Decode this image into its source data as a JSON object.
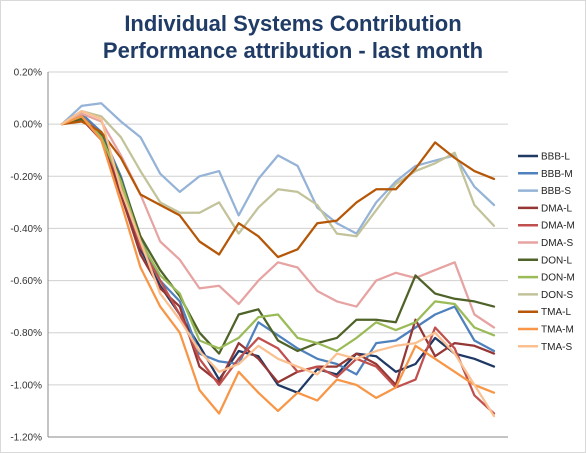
{
  "chart_data": {
    "type": "line",
    "title": "Individual Systems Contribution",
    "subtitle": "Performance attribution - last month",
    "xlabel": "",
    "ylabel": "",
    "ylim": [
      -1.2,
      0.2
    ],
    "yticks": [
      0.2,
      0.0,
      -0.2,
      -0.4,
      -0.6,
      -0.8,
      -1.0,
      -1.2
    ],
    "ytick_labels": [
      "0.20%",
      "0.00%",
      "-0.20%",
      "-0.40%",
      "-0.60%",
      "-0.80%",
      "-1.00%",
      "-1.20%"
    ],
    "grid": "horizontal",
    "legend_position": "right",
    "series": [
      {
        "name": "BBB-L",
        "color": "#1f3864",
        "values": [
          0,
          0.02,
          -0.05,
          -0.25,
          -0.48,
          -0.62,
          -0.73,
          -0.85,
          -0.98,
          -0.87,
          -0.89,
          -1.0,
          -1.03,
          -0.94,
          -0.96,
          -0.88,
          -0.89,
          -0.95,
          -0.92,
          -0.82,
          -0.88,
          -0.9,
          -0.93
        ]
      },
      {
        "name": "BBB-M",
        "color": "#4f81bd",
        "values": [
          0,
          0.04,
          -0.03,
          -0.2,
          -0.44,
          -0.6,
          -0.68,
          -0.88,
          -0.91,
          -0.92,
          -0.76,
          -0.81,
          -0.86,
          -0.9,
          -0.92,
          -0.96,
          -0.84,
          -0.83,
          -0.78,
          -0.73,
          -0.7,
          -0.83,
          -0.87
        ]
      },
      {
        "name": "BBB-S",
        "color": "#95b3d7",
        "values": [
          0,
          0.07,
          0.08,
          0.01,
          -0.05,
          -0.19,
          -0.26,
          -0.2,
          -0.18,
          -0.35,
          -0.21,
          -0.12,
          -0.16,
          -0.32,
          -0.38,
          -0.42,
          -0.3,
          -0.22,
          -0.16,
          -0.14,
          -0.12,
          -0.24,
          -0.31
        ]
      },
      {
        "name": "DMA-L",
        "color": "#953735",
        "values": [
          0,
          0.02,
          -0.06,
          -0.27,
          -0.5,
          -0.63,
          -0.7,
          -0.93,
          -0.99,
          -0.84,
          -0.9,
          -0.99,
          -0.95,
          -0.93,
          -0.93,
          -0.88,
          -0.92,
          -1.0,
          -0.75,
          -0.89,
          -0.84,
          -0.85,
          -0.88
        ]
      },
      {
        "name": "DMA-M",
        "color": "#c0504d",
        "values": [
          0,
          0.03,
          -0.04,
          -0.24,
          -0.47,
          -0.6,
          -0.73,
          -0.9,
          -1.0,
          -0.9,
          -0.82,
          -0.86,
          -0.95,
          -0.93,
          -0.97,
          -0.9,
          -0.93,
          -1.01,
          -0.98,
          -0.78,
          -0.86,
          -1.04,
          -1.11
        ]
      },
      {
        "name": "DMA-S",
        "color": "#e6a3a2",
        "values": [
          0,
          0.04,
          0.01,
          -0.12,
          -0.27,
          -0.45,
          -0.52,
          -0.63,
          -0.62,
          -0.69,
          -0.6,
          -0.53,
          -0.55,
          -0.64,
          -0.68,
          -0.7,
          -0.6,
          -0.57,
          -0.59,
          -0.56,
          -0.53,
          -0.73,
          -0.78
        ]
      },
      {
        "name": "DON-L",
        "color": "#4f6228",
        "values": [
          0,
          0.02,
          -0.04,
          -0.21,
          -0.43,
          -0.56,
          -0.66,
          -0.8,
          -0.88,
          -0.73,
          -0.71,
          -0.83,
          -0.87,
          -0.84,
          -0.82,
          -0.75,
          -0.75,
          -0.76,
          -0.58,
          -0.65,
          -0.67,
          -0.68,
          -0.7
        ]
      },
      {
        "name": "DON-M",
        "color": "#9bbb59",
        "values": [
          0,
          0.03,
          -0.05,
          -0.22,
          -0.45,
          -0.58,
          -0.65,
          -0.83,
          -0.86,
          -0.82,
          -0.74,
          -0.73,
          -0.82,
          -0.84,
          -0.87,
          -0.82,
          -0.76,
          -0.79,
          -0.76,
          -0.68,
          -0.69,
          -0.78,
          -0.81
        ]
      },
      {
        "name": "DON-S",
        "color": "#c3c39b",
        "values": [
          0,
          0.05,
          0.03,
          -0.05,
          -0.18,
          -0.3,
          -0.34,
          -0.34,
          -0.3,
          -0.42,
          -0.32,
          -0.25,
          -0.26,
          -0.31,
          -0.42,
          -0.43,
          -0.33,
          -0.23,
          -0.18,
          -0.15,
          -0.11,
          -0.31,
          -0.39
        ]
      },
      {
        "name": "TMA-L",
        "color": "#b65708",
        "values": [
          0,
          0.01,
          -0.03,
          -0.13,
          -0.27,
          -0.31,
          -0.35,
          -0.45,
          -0.5,
          -0.38,
          -0.43,
          -0.51,
          -0.48,
          -0.38,
          -0.37,
          -0.3,
          -0.25,
          -0.25,
          -0.17,
          -0.07,
          -0.13,
          -0.18,
          -0.21
        ]
      },
      {
        "name": "TMA-M",
        "color": "#f79646",
        "values": [
          0,
          0.03,
          -0.06,
          -0.3,
          -0.55,
          -0.7,
          -0.8,
          -1.02,
          -1.11,
          -0.95,
          -1.03,
          -1.1,
          -1.03,
          -1.06,
          -0.98,
          -1.0,
          -1.05,
          -1.01,
          -0.85,
          -0.9,
          -0.95,
          -1.0,
          -1.03
        ]
      },
      {
        "name": "TMA-S",
        "color": "#fac090",
        "values": [
          0,
          0.05,
          0.02,
          -0.25,
          -0.45,
          -0.65,
          -0.75,
          -0.87,
          -0.95,
          -0.92,
          -0.85,
          -0.9,
          -0.93,
          -0.96,
          -0.88,
          -0.9,
          -0.87,
          -0.85,
          -0.84,
          -0.8,
          -0.88,
          -1.0,
          -1.12
        ]
      }
    ]
  }
}
